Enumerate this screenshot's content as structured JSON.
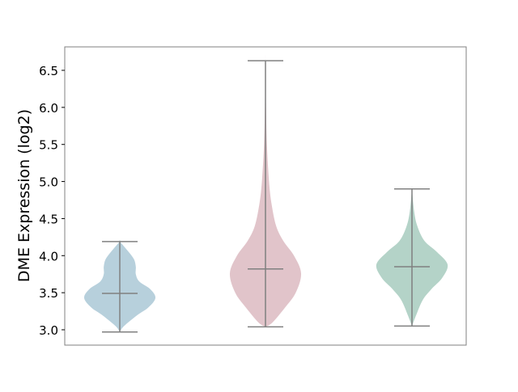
{
  "chart_data": {
    "type": "violin",
    "title": "",
    "xlabel": "",
    "ylabel": "DME Expression (log2)",
    "ylim": [
      2.8,
      6.8
    ],
    "yticks": [
      3.0,
      3.5,
      4.0,
      4.5,
      5.0,
      5.5,
      6.0,
      6.5
    ],
    "ytick_labels": [
      "3.0",
      "3.5",
      "4.0",
      "4.5",
      "5.0",
      "5.5",
      "6.0",
      "6.5"
    ],
    "grid": false,
    "series": [
      {
        "color": "#b7d0dc",
        "min": 2.97,
        "max": 4.19,
        "median": 3.49,
        "density": [
          [
            2.97,
            0
          ],
          [
            3.05,
            0.12
          ],
          [
            3.2,
            0.5
          ],
          [
            3.3,
            0.8
          ],
          [
            3.43,
            1
          ],
          [
            3.55,
            0.85
          ],
          [
            3.65,
            0.55
          ],
          [
            3.75,
            0.45
          ],
          [
            3.85,
            0.45
          ],
          [
            3.95,
            0.4
          ],
          [
            4.05,
            0.25
          ],
          [
            4.19,
            0
          ]
        ]
      },
      {
        "color": "#e1c4ca",
        "min": 3.04,
        "max": 6.63,
        "median": 3.82,
        "density": [
          [
            3.04,
            0
          ],
          [
            3.1,
            0.2
          ],
          [
            3.3,
            0.55
          ],
          [
            3.5,
            0.85
          ],
          [
            3.76,
            1
          ],
          [
            4.0,
            0.8
          ],
          [
            4.2,
            0.5
          ],
          [
            4.4,
            0.3
          ],
          [
            4.7,
            0.17
          ],
          [
            5.0,
            0.1
          ],
          [
            5.5,
            0.04
          ],
          [
            6.0,
            0.015
          ],
          [
            6.63,
            0
          ]
        ]
      },
      {
        "color": "#b4d3c8",
        "min": 3.05,
        "max": 4.9,
        "median": 3.85,
        "density": [
          [
            3.05,
            0
          ],
          [
            3.2,
            0.12
          ],
          [
            3.4,
            0.3
          ],
          [
            3.55,
            0.55
          ],
          [
            3.7,
            0.85
          ],
          [
            3.88,
            1
          ],
          [
            4.05,
            0.7
          ],
          [
            4.2,
            0.35
          ],
          [
            4.4,
            0.15
          ],
          [
            4.6,
            0.06
          ],
          [
            4.9,
            0
          ]
        ]
      }
    ]
  }
}
